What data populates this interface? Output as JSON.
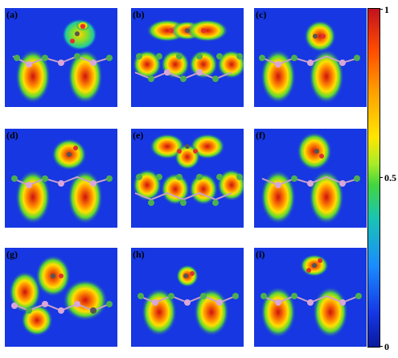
{
  "panels": [
    {
      "label": "(a)"
    },
    {
      "label": "(b)"
    },
    {
      "label": "(c)"
    },
    {
      "label": "(d)"
    },
    {
      "label": "(e)"
    },
    {
      "label": "(f)"
    },
    {
      "label": "(g)"
    },
    {
      "label": "(h)"
    },
    {
      "label": "(i)"
    }
  ],
  "colorbar": {
    "max": "1",
    "mid": "0.5",
    "min": "0"
  },
  "colors": {
    "background": "#1637e2",
    "atom_green": "#4caf50",
    "atom_pink": "#d9a6d9",
    "atom_red": "#e03030",
    "atom_dark": "#555555"
  }
}
